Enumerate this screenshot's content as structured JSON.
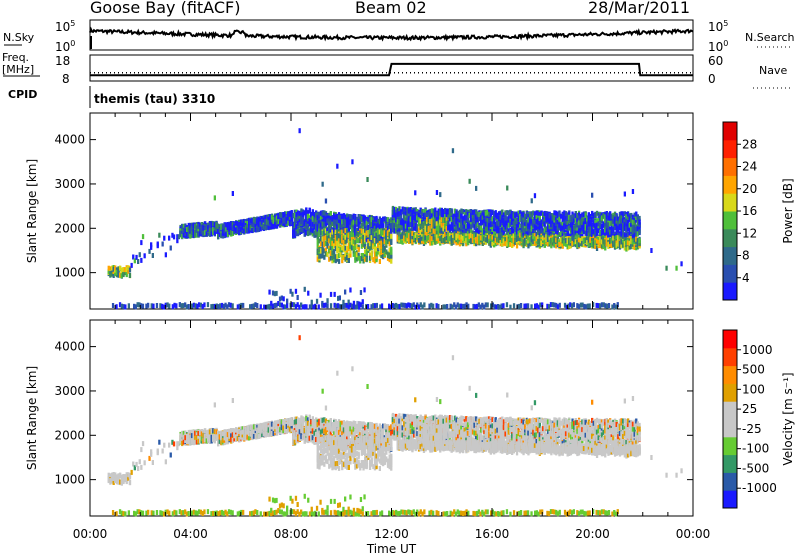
{
  "header": {
    "station": "Goose Bay (fitACF)",
    "beam": "Beam 02",
    "date": "28/Mar/2011"
  },
  "left_labels": {
    "nsky": "N.Sky",
    "freq": "Freq.",
    "freq_unit": "[MHz]",
    "cpid": "CPID"
  },
  "right_labels": {
    "nsearch": "N.Search",
    "nave": "Nave"
  },
  "cpid_text": "themis (tau) 3310",
  "colors": {
    "power": [
      "#1a1aff",
      "#2a4fb0",
      "#2f6a8a",
      "#3a8a5a",
      "#4fbf3a",
      "#d8d81a",
      "#ffa500",
      "#ff7000",
      "#ff2000",
      "#e00000"
    ],
    "velocity": [
      "#ff0000",
      "#ff4000",
      "#ff8c00",
      "#e0a000",
      "#c8c8c8",
      "#c8c8c8",
      "#66cc33",
      "#339966",
      "#2a5aa8",
      "#1a1aff"
    ],
    "ground": "#c8c8c8"
  },
  "chart_data": [
    {
      "type": "line",
      "name": "noise-panel",
      "left_axis": {
        "label": "N.Sky",
        "ticks": [
          "10^5",
          "10^0"
        ]
      },
      "right_axis": {
        "label": "N.Search",
        "ticks": [
          "10^5",
          "10^0"
        ]
      }
    },
    {
      "type": "line",
      "name": "frequency-nave-panel",
      "left_axis": {
        "label": "Freq. [MHz]",
        "ticks": [
          "18",
          "8"
        ],
        "range": [
          8,
          18
        ]
      },
      "right_axis": {
        "label": "Nave",
        "ticks": [
          "60",
          "0"
        ],
        "range": [
          0,
          60
        ]
      },
      "series": [
        {
          "name": "Freq.",
          "x": [
            0,
            11.9,
            12.0,
            21.85,
            21.9,
            24
          ],
          "y": [
            10.2,
            10.2,
            14.6,
            14.6,
            10.2,
            10.2
          ]
        },
        {
          "name": "Nave",
          "x": [
            0,
            24
          ],
          "y": [
            19,
            19
          ]
        }
      ]
    },
    {
      "type": "heatmap",
      "name": "power-panel",
      "ylabel": "Slant Range [km]",
      "yticks": [
        1000,
        2000,
        3000,
        4000
      ],
      "ylim": [
        180,
        4600
      ],
      "xlim": [
        0,
        24
      ],
      "colorbar": {
        "label": "Power [dB]",
        "ticks": [
          "4",
          "8",
          "12",
          "16",
          "20",
          "24",
          "28"
        ],
        "range": [
          0,
          30
        ]
      }
    },
    {
      "type": "heatmap",
      "name": "velocity-panel",
      "ylabel": "Slant Range [km]",
      "yticks": [
        1000,
        2000,
        3000,
        4000
      ],
      "ylim": [
        180,
        4600
      ],
      "xlim": [
        0,
        24
      ],
      "xlabel": "Time UT",
      "xticks": [
        "00:00",
        "04:00",
        "08:00",
        "12:00",
        "16:00",
        "20:00",
        "00:00"
      ],
      "colorbar": {
        "label": "Velocity [m s⁻¹]",
        "ticks": [
          "1000",
          "500",
          "100",
          "25",
          "-25",
          "-100",
          "-500",
          "-1000"
        ]
      }
    }
  ]
}
